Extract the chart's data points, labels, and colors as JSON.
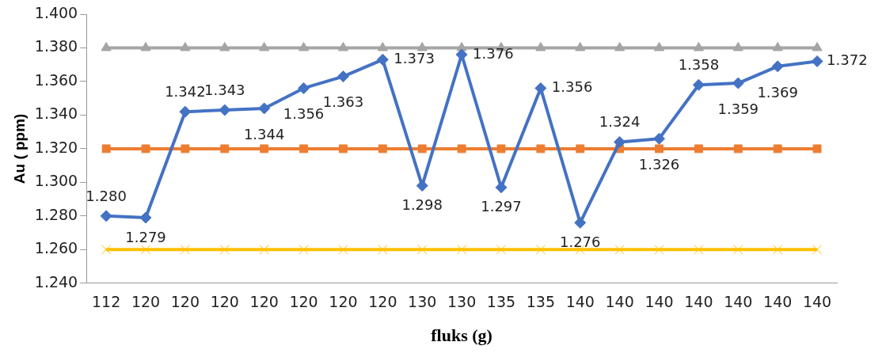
{
  "chart_data": {
    "type": "line",
    "xlabel": "fluks (g)",
    "ylabel": "Au ( ppm)",
    "grid": false,
    "legend": false,
    "categories": [
      "112",
      "120",
      "120",
      "120",
      "120",
      "120",
      "120",
      "120",
      "130",
      "130",
      "135",
      "135",
      "140",
      "140",
      "140",
      "140",
      "140",
      "140",
      "140"
    ],
    "ylim": [
      1.24,
      1.4
    ],
    "yticks": [
      {
        "value": 1.24,
        "label": "1.240"
      },
      {
        "value": 1.26,
        "label": "1.260"
      },
      {
        "value": 1.28,
        "label": "1.280"
      },
      {
        "value": 1.3,
        "label": "1.300"
      },
      {
        "value": 1.32,
        "label": "1.320"
      },
      {
        "value": 1.34,
        "label": "1.340"
      },
      {
        "value": 1.36,
        "label": "1.360"
      },
      {
        "value": 1.38,
        "label": "1.380"
      },
      {
        "value": 1.4,
        "label": "1.400"
      }
    ],
    "series": [
      {
        "color": "#4472c4",
        "marker": "diamond",
        "values": [
          1.28,
          1.279,
          1.342,
          1.343,
          1.344,
          1.356,
          1.363,
          1.373,
          1.298,
          1.376,
          1.297,
          1.356,
          1.276,
          1.324,
          1.326,
          1.358,
          1.359,
          1.369,
          1.372
        ],
        "value_labels": [
          "1.280",
          "1.279",
          "1.342",
          "1.343",
          "1.344",
          "1.356",
          "1.363",
          "1.373",
          "1.298",
          "1.376",
          "1.297",
          "1.356",
          "1.276",
          "1.324",
          "1.326",
          "1.358",
          "1.359",
          "1.369",
          "1.372"
        ]
      },
      {
        "color": "#ed7d31",
        "marker": "square",
        "values": [
          1.32,
          1.32,
          1.32,
          1.32,
          1.32,
          1.32,
          1.32,
          1.32,
          1.32,
          1.32,
          1.32,
          1.32,
          1.32,
          1.32,
          1.32,
          1.32,
          1.32,
          1.32,
          1.32
        ]
      },
      {
        "color": "#a5a5a5",
        "marker": "triangle",
        "values": [
          1.38,
          1.38,
          1.38,
          1.38,
          1.38,
          1.38,
          1.38,
          1.38,
          1.38,
          1.38,
          1.38,
          1.38,
          1.38,
          1.38,
          1.38,
          1.38,
          1.38,
          1.38,
          1.38
        ]
      },
      {
        "color": "#ffc000",
        "marker": "cross",
        "values": [
          1.26,
          1.26,
          1.26,
          1.26,
          1.26,
          1.26,
          1.26,
          1.26,
          1.26,
          1.26,
          1.26,
          1.26,
          1.26,
          1.26,
          1.26,
          1.26,
          1.26,
          1.26,
          1.26
        ]
      }
    ]
  }
}
